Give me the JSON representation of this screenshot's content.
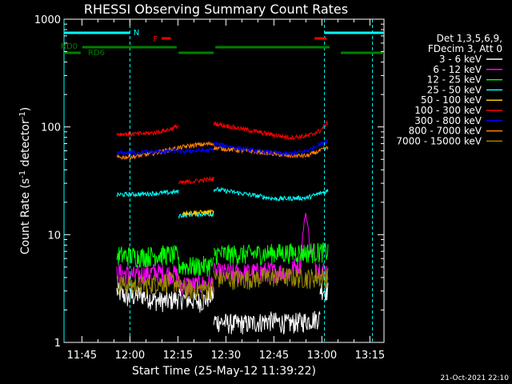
{
  "chart_data": {
    "type": "line",
    "title": "RHESSI Observing Summary Count Rates",
    "xlabel": "Start Time (25-May-12 11:39:22)",
    "ylabel_main": "Count Rate (s",
    "ylabel_sup1": "-1",
    "ylabel_mid": " detector",
    "ylabel_sup2": "-1",
    "ylabel_end": ")",
    "footer_date": "21-Oct-2021 22:10",
    "x_unit": "minutes since 11:39:22",
    "xlim": [
      0,
      100
    ],
    "ylim": [
      1,
      1000
    ],
    "log_y": true,
    "x_ticks": [
      {
        "label": "11:45",
        "value": 5.6
      },
      {
        "label": "12:00",
        "value": 20.6
      },
      {
        "label": "12:15",
        "value": 35.6
      },
      {
        "label": "12:30",
        "value": 50.6
      },
      {
        "label": "12:45",
        "value": 65.6
      },
      {
        "label": "13:00",
        "value": 80.6
      },
      {
        "label": "13:15",
        "value": 95.6
      }
    ],
    "y_ticks": [
      {
        "label": "1",
        "value": 1
      },
      {
        "label": "10",
        "value": 10
      },
      {
        "label": "100",
        "value": 100
      },
      {
        "label": "1000",
        "value": 1000
      }
    ],
    "legend_header": [
      "Det 1,3,5,6,9,",
      "FDecim 3, Att 0"
    ],
    "series": [
      {
        "name": "3 - 6 keV",
        "color": "#ffffff",
        "segments": [
          {
            "x": [
              16.5,
              20,
              24,
              28,
              32,
              35.8
            ],
            "y": [
              3.0,
              2.6,
              2.8,
              2.5,
              2.4,
              2.6
            ]
          },
          {
            "x": [
              35.8,
              39,
              43,
              46.8
            ],
            "y": [
              2.6,
              2.5,
              2.4,
              2.8
            ]
          },
          {
            "x": [
              46.8,
              52,
              58,
              64,
              70,
              76,
              80
            ],
            "y": [
              1.6,
              1.5,
              1.5,
              1.6,
              1.5,
              1.6,
              1.7
            ]
          },
          {
            "x": [
              80,
              82.5
            ],
            "y": [
              3.2,
              3.0
            ]
          }
        ]
      },
      {
        "name": "6 - 12 keV",
        "color": "#ff00ff",
        "segments": [
          {
            "x": [
              16.5,
              22,
              28,
              35.8
            ],
            "y": [
              4.5,
              4.2,
              4.5,
              4.3
            ]
          },
          {
            "x": [
              35.8,
              41,
              46.8
            ],
            "y": [
              3.5,
              3.4,
              3.6
            ]
          },
          {
            "x": [
              46.8,
              55,
              63,
              70,
              74,
              75.5,
              77,
              79,
              82.5
            ],
            "y": [
              4.5,
              4.4,
              4.6,
              4.5,
              5.5,
              16,
              7.5,
              5,
              4.6
            ]
          }
        ]
      },
      {
        "name": "12 - 25 keV",
        "color": "#00ff00",
        "segments": [
          {
            "x": [
              16.5,
              24,
              32,
              35.8
            ],
            "y": [
              6.5,
              6.3,
              6.6,
              6.4
            ]
          },
          {
            "x": [
              35.8,
              41,
              46.8
            ],
            "y": [
              5.2,
              5.1,
              5.3
            ]
          },
          {
            "x": [
              46.8,
              56,
              66,
              76,
              82.5
            ],
            "y": [
              6.7,
              6.6,
              6.8,
              6.9,
              7.0
            ]
          }
        ]
      },
      {
        "name": "25 - 50 keV",
        "color": "#00ffff",
        "segments": [
          {
            "x": [
              16.5,
              24,
              32,
              35.8
            ],
            "y": [
              23.5,
              23.8,
              24.5,
              25.0
            ]
          },
          {
            "x": [
              35.8,
              41,
              46.8
            ],
            "y": [
              15.0,
              15.5,
              15.5
            ]
          },
          {
            "x": [
              46.8,
              56,
              66,
              76,
              82.5
            ],
            "y": [
              26.5,
              24.0,
              21.5,
              22.0,
              25.5
            ]
          }
        ]
      },
      {
        "name": "50 - 100 keV",
        "color": "#ffcc00",
        "segments": [
          {
            "x": [
              37,
              41,
              46.8
            ],
            "y": [
              16.0,
              16.0,
              16.2
            ]
          }
        ]
      },
      {
        "name": "100 - 300 keV",
        "color": "#ff0000",
        "segments": [
          {
            "x": [
              16.5,
              22,
              28,
              33,
              35.8
            ],
            "y": [
              86,
              86,
              88,
              95,
              102
            ]
          },
          {
            "x": [
              35.8,
              41,
              46.8
            ],
            "y": [
              30,
              31.5,
              33
            ]
          },
          {
            "x": [
              46.8,
              54,
              62,
              70,
              76,
              80,
              82.5
            ],
            "y": [
              108,
              98,
              88,
              80,
              82,
              92,
              110
            ]
          }
        ]
      },
      {
        "name": "300 - 800 keV",
        "color": "#0000ff",
        "segments": [
          {
            "x": [
              16.5,
              22,
              28,
              35.8
            ],
            "y": [
              57,
              58,
              59,
              60
            ]
          },
          {
            "x": [
              35.8,
              41,
              46.8
            ],
            "y": [
              59,
              60,
              61
            ]
          },
          {
            "x": [
              46.8,
              54,
              62,
              70,
              76,
              82.5
            ],
            "y": [
              70,
              64,
              59,
              56,
              60,
              75
            ]
          }
        ]
      },
      {
        "name": "800 - 7000 keV",
        "color": "#ff8000",
        "segments": [
          {
            "x": [
              16.5,
              22,
              28,
              35.8
            ],
            "y": [
              52,
              53,
              57,
              64
            ]
          },
          {
            "x": [
              35.8,
              41,
              46.8
            ],
            "y": [
              64,
              68,
              70
            ]
          },
          {
            "x": [
              46.8,
              54,
              62,
              70,
              76,
              82.5
            ],
            "y": [
              64,
              61,
              58,
              54,
              54,
              64
            ]
          }
        ]
      },
      {
        "name": "7000 - 15000 keV",
        "color": "#998800",
        "segments": [
          {
            "x": [
              16.5,
              24,
              32,
              35.8
            ],
            "y": [
              3.5,
              3.4,
              3.7,
              3.6
            ]
          },
          {
            "x": [
              35.8,
              41,
              46.8
            ],
            "y": [
              3.2,
              3.1,
              3.2
            ]
          },
          {
            "x": [
              46.8,
              56,
              66,
              76,
              82.5
            ],
            "y": [
              4.0,
              3.9,
              4.1,
              4.0,
              4.1
            ]
          }
        ]
      }
    ],
    "flags": {
      "night_color": "#00ffff",
      "night_intervals": [
        [
          0,
          20.6
        ],
        [
          81.4,
          100
        ]
      ],
      "night_label": "N",
      "night_label_x": 21.7,
      "flare_color": "#ff0000",
      "flare_intervals": [
        [
          30.5,
          33.4
        ],
        [
          78.3,
          82.1
        ]
      ],
      "flare_label": "F",
      "flare_label_x": 27.8,
      "rd_color": "#008000",
      "rd0_label": "RD0",
      "rd6_label": "RD6",
      "rd_upper": [
        [
          5.7,
          35.2
        ],
        [
          47.3,
          83.0
        ]
      ],
      "rd_lower": [
        [
          0,
          5.2
        ],
        [
          35.8,
          46.8
        ],
        [
          86.5,
          100
        ]
      ],
      "vertical_markers": [
        0,
        20.6,
        81.4,
        96.4
      ]
    }
  }
}
